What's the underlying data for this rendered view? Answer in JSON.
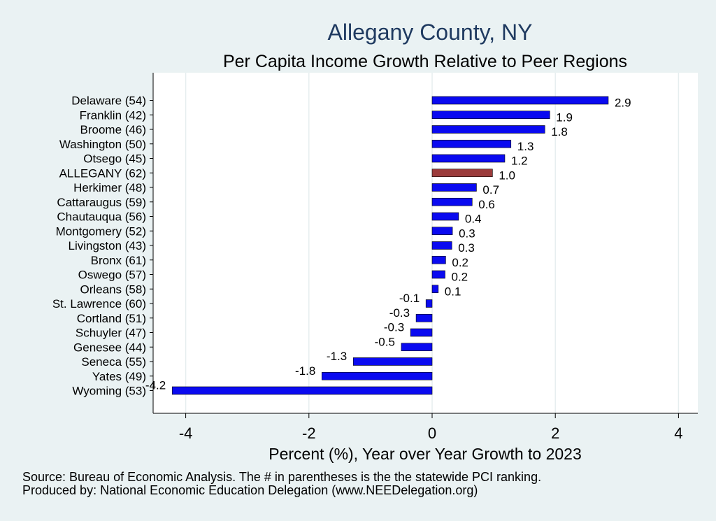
{
  "chart_data": {
    "type": "bar",
    "orientation": "horizontal",
    "title": "Allegany County, NY",
    "subtitle": "Per Capita Income Growth Relative to Peer Regions",
    "xlabel": "Percent (%), Year over Year Growth to 2023",
    "ylabel": "",
    "xlim": [
      -4.4,
      4.3
    ],
    "xticks": [
      -4,
      -2,
      0,
      2,
      4
    ],
    "grid": true,
    "legend": "none",
    "categories": [
      "Delaware (54)",
      "Franklin (42)",
      "Broome (46)",
      "Washington (50)",
      "Otsego (45)",
      "ALLEGANY (62)",
      "Herkimer (48)",
      "Cattaraugus (59)",
      "Chautauqua (56)",
      "Montgomery (52)",
      "Livingston (43)",
      "Bronx (61)",
      "Oswego (57)",
      "Orleans (58)",
      "St. Lawrence (60)",
      "Cortland (51)",
      "Schuyler (47)",
      "Genesee (44)",
      "Seneca (55)",
      "Yates (49)",
      "Wyoming (53)"
    ],
    "values": [
      2.86,
      1.91,
      1.83,
      1.28,
      1.18,
      0.98,
      0.72,
      0.65,
      0.43,
      0.33,
      0.32,
      0.22,
      0.21,
      0.1,
      -0.1,
      -0.26,
      -0.35,
      -0.5,
      -1.28,
      -1.79,
      -4.22
    ],
    "data_labels": [
      "2.9",
      "1.9",
      "1.8",
      "1.3",
      "1.2",
      "1.0",
      "0.7",
      "0.6",
      "0.4",
      "0.3",
      "0.3",
      "0.2",
      "0.2",
      "0.1",
      "-0.1",
      "-0.3",
      "-0.3",
      "-0.5",
      "-1.3",
      "-1.8",
      "-4.2"
    ],
    "highlight_category": "ALLEGANY (62)",
    "colors": {
      "bar": "#0a0af0",
      "highlight": "#9b3b3b",
      "grid": "#ffffff",
      "plot_bg": "#ffffff",
      "page_bg": "#eaf2f3",
      "title": "#1f3a60"
    }
  },
  "footer": {
    "source": "Source: Bureau of Economic Analysis. The # in parentheses is the the statewide PCI ranking.",
    "produced_by": "Produced by: National Economic Education Delegation (www.NEEDelegation.org)"
  }
}
